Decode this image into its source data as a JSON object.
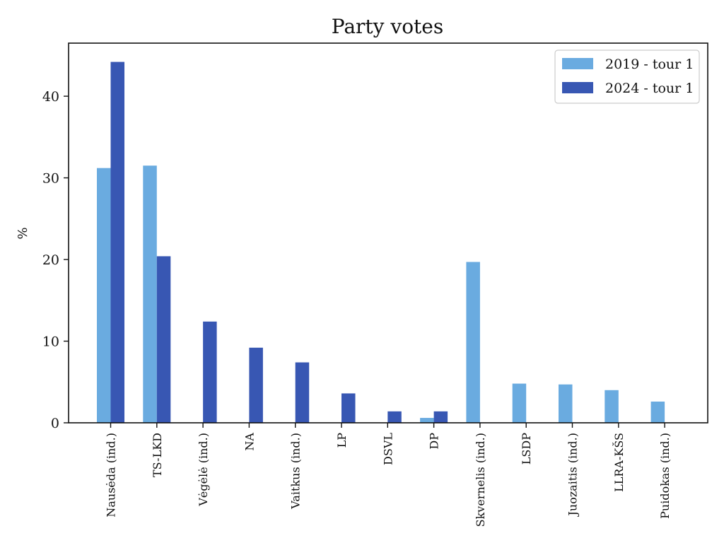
{
  "chart_data": {
    "type": "bar",
    "title": "Party votes",
    "xlabel": "",
    "ylabel": "%",
    "ylim": [
      0,
      46.5
    ],
    "yticks": [
      0,
      10,
      20,
      30,
      40
    ],
    "grid": false,
    "legend_position": "top-right",
    "categories": [
      "Nausėda (ind.)",
      "TS-LKD",
      "Vėgėlė (ind.)",
      "NA",
      "Vaitkus (ind.)",
      "LP",
      "DSVL",
      "DP",
      "Skvernelis (ind.)",
      "LSDP",
      "Juozaitis (ind.)",
      "LLRA-KŠS",
      "Puidokas (ind.)"
    ],
    "series": [
      {
        "name": "2019 - tour 1",
        "color": "#6aabe0",
        "values": [
          31.2,
          31.5,
          null,
          null,
          null,
          null,
          null,
          0.6,
          19.7,
          4.8,
          4.7,
          4.0,
          2.6
        ]
      },
      {
        "name": "2024 - tour 1",
        "color": "#3857b3",
        "values": [
          44.2,
          20.4,
          12.4,
          9.2,
          7.4,
          3.6,
          1.4,
          1.4,
          null,
          null,
          null,
          null,
          null
        ]
      }
    ]
  }
}
